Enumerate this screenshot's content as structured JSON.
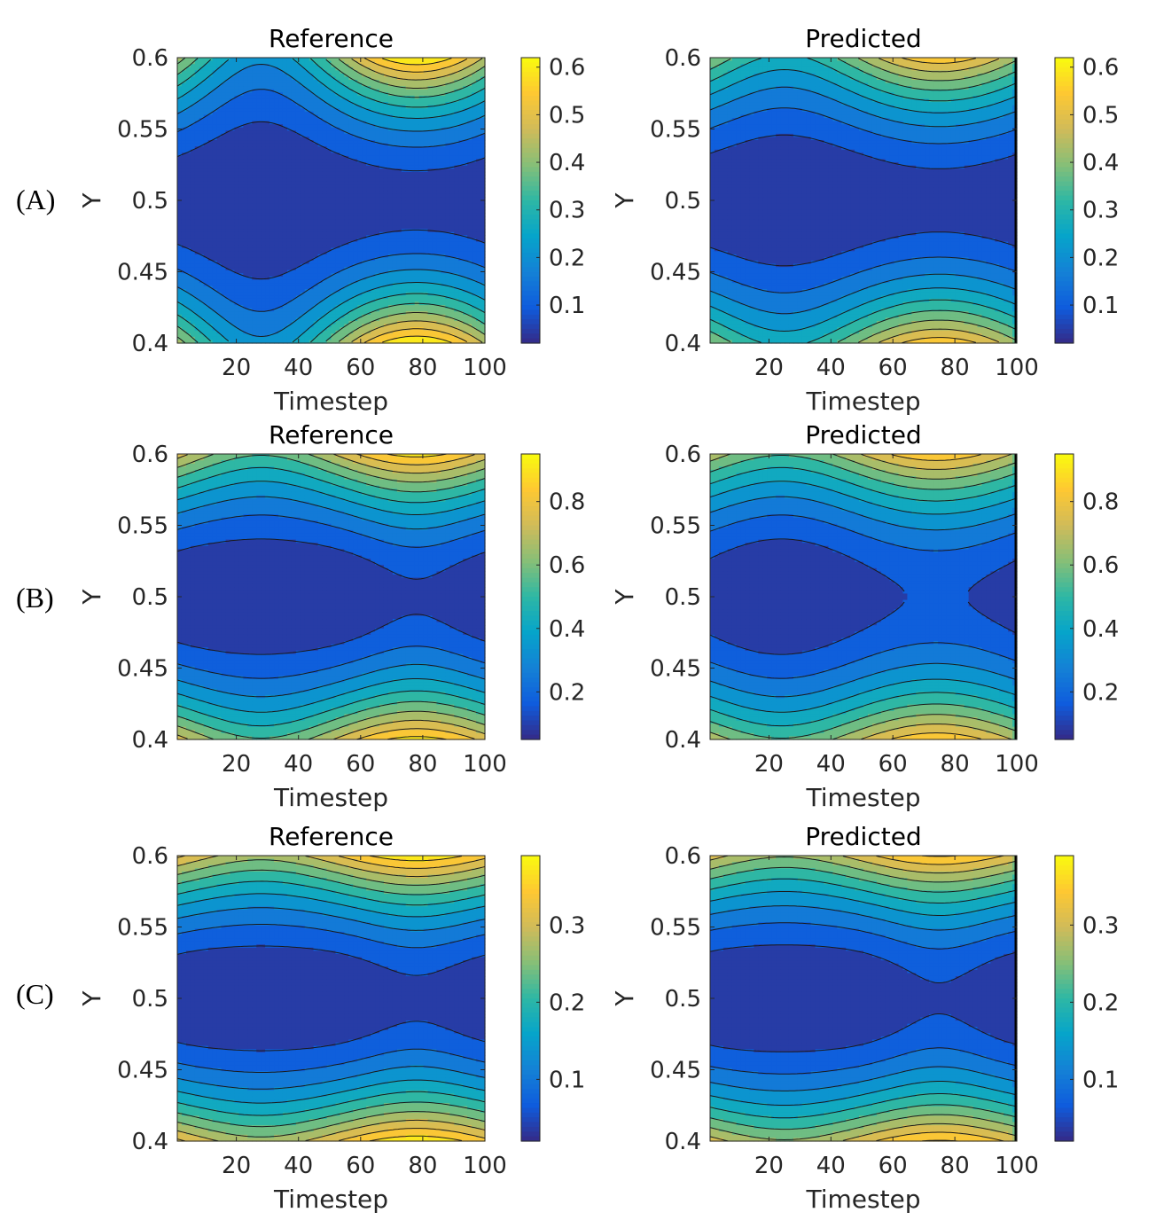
{
  "figure": {
    "rows": [
      {
        "label": "(A)"
      },
      {
        "label": "(B)"
      },
      {
        "label": "(C)"
      }
    ]
  },
  "chart_data": [
    {
      "type": "heatmap",
      "row": "A",
      "title": "Reference",
      "xlabel": "Timestep",
      "ylabel": "Y",
      "xlim": [
        1,
        100
      ],
      "ylim": [
        0.4,
        0.6
      ],
      "xticks": [
        20,
        40,
        60,
        80,
        100
      ],
      "xtick_labels": [
        "20",
        "40",
        "60",
        "80",
        "100"
      ],
      "yticks": [
        0.4,
        0.45,
        0.5,
        0.55,
        0.6
      ],
      "ytick_labels": [
        "0.4",
        "0.45",
        "0.5",
        "0.55",
        "0.6"
      ],
      "colorbar": {
        "min": 0.02,
        "max": 0.62,
        "ticks": [
          0.1,
          0.2,
          0.3,
          0.4,
          0.5,
          0.6
        ],
        "tick_labels": [
          "0.1",
          "0.2",
          "0.3",
          "0.4",
          "0.5",
          "0.6"
        ]
      },
      "field": {
        "peak_timestep": 78,
        "edge_min": 0.2,
        "edge_max": 0.62,
        "center_min": 0.02,
        "center_max": 0.05,
        "pinch": false,
        "right_edge": false
      }
    },
    {
      "type": "heatmap",
      "row": "A",
      "title": "Predicted",
      "xlabel": "Timestep",
      "ylabel": "Y",
      "xlim": [
        1,
        100
      ],
      "ylim": [
        0.4,
        0.6
      ],
      "xticks": [
        20,
        40,
        60,
        80,
        100
      ],
      "xtick_labels": [
        "20",
        "40",
        "60",
        "80",
        "100"
      ],
      "yticks": [
        0.4,
        0.45,
        0.5,
        0.55,
        0.6
      ],
      "ytick_labels": [
        "0.4",
        "0.45",
        "0.5",
        "0.55",
        "0.6"
      ],
      "colorbar": {
        "min": 0.02,
        "max": 0.62,
        "ticks": [
          0.1,
          0.2,
          0.3,
          0.4,
          0.5,
          0.6
        ],
        "tick_labels": [
          "0.1",
          "0.2",
          "0.3",
          "0.4",
          "0.5",
          "0.6"
        ]
      },
      "field": {
        "peak_timestep": 75,
        "edge_min": 0.28,
        "edge_max": 0.55,
        "center_min": 0.02,
        "center_max": 0.05,
        "pinch": false,
        "right_edge": true
      }
    },
    {
      "type": "heatmap",
      "row": "B",
      "title": "Reference",
      "xlabel": "Timestep",
      "ylabel": "Y",
      "xlim": [
        1,
        100
      ],
      "ylim": [
        0.4,
        0.6
      ],
      "xticks": [
        20,
        40,
        60,
        80,
        100
      ],
      "xtick_labels": [
        "20",
        "40",
        "60",
        "80",
        "100"
      ],
      "yticks": [
        0.4,
        0.45,
        0.5,
        0.55,
        0.6
      ],
      "ytick_labels": [
        "0.4",
        "0.45",
        "0.5",
        "0.55",
        "0.6"
      ],
      "colorbar": {
        "min": 0.05,
        "max": 0.95,
        "ticks": [
          0.2,
          0.4,
          0.6,
          0.8
        ],
        "tick_labels": [
          "0.2",
          "0.4",
          "0.6",
          "0.8"
        ]
      },
      "field": {
        "peak_timestep": 78,
        "edge_min": 0.55,
        "edge_max": 0.9,
        "center_min": 0.05,
        "center_max": 0.12,
        "pinch": true,
        "right_edge": false
      }
    },
    {
      "type": "heatmap",
      "row": "B",
      "title": "Predicted",
      "xlabel": "Timestep",
      "ylabel": "Y",
      "xlim": [
        1,
        100
      ],
      "ylim": [
        0.4,
        0.6
      ],
      "xticks": [
        20,
        40,
        60,
        80,
        100
      ],
      "xtick_labels": [
        "20",
        "40",
        "60",
        "80",
        "100"
      ],
      "yticks": [
        0.4,
        0.45,
        0.5,
        0.55,
        0.6
      ],
      "ytick_labels": [
        "0.4",
        "0.45",
        "0.5",
        "0.55",
        "0.6"
      ],
      "colorbar": {
        "min": 0.05,
        "max": 0.95,
        "ticks": [
          0.2,
          0.4,
          0.6,
          0.8
        ],
        "tick_labels": [
          "0.2",
          "0.4",
          "0.6",
          "0.8"
        ]
      },
      "field": {
        "peak_timestep": 74,
        "edge_min": 0.55,
        "edge_max": 0.85,
        "center_min": 0.05,
        "center_max": 0.14,
        "pinch": false,
        "right_edge": true
      }
    },
    {
      "type": "heatmap",
      "row": "C",
      "title": "Reference",
      "xlabel": "Timestep",
      "ylabel": "Y",
      "xlim": [
        1,
        100
      ],
      "ylim": [
        0.4,
        0.6
      ],
      "xticks": [
        20,
        40,
        60,
        80,
        100
      ],
      "xtick_labels": [
        "20",
        "40",
        "60",
        "80",
        "100"
      ],
      "yticks": [
        0.4,
        0.45,
        0.5,
        0.55,
        0.6
      ],
      "ytick_labels": [
        "0.4",
        "0.45",
        "0.5",
        "0.55",
        "0.6"
      ],
      "colorbar": {
        "min": 0.02,
        "max": 0.39,
        "ticks": [
          0.1,
          0.2,
          0.3
        ],
        "tick_labels": [
          "0.1",
          "0.2",
          "0.3"
        ]
      },
      "field": {
        "peak_timestep": 78,
        "edge_min": 0.27,
        "edge_max": 0.38,
        "center_min": 0.02,
        "center_max": 0.045,
        "pinch": true,
        "right_edge": false
      }
    },
    {
      "type": "heatmap",
      "row": "C",
      "title": "Predicted",
      "xlabel": "Timestep",
      "ylabel": "Y",
      "xlim": [
        1,
        100
      ],
      "ylim": [
        0.4,
        0.6
      ],
      "xticks": [
        20,
        40,
        60,
        80,
        100
      ],
      "xtick_labels": [
        "20",
        "40",
        "60",
        "80",
        "100"
      ],
      "yticks": [
        0.4,
        0.45,
        0.5,
        0.55,
        0.6
      ],
      "ytick_labels": [
        "0.4",
        "0.45",
        "0.5",
        "0.55",
        "0.6"
      ],
      "colorbar": {
        "min": 0.02,
        "max": 0.39,
        "ticks": [
          0.1,
          0.2,
          0.3
        ],
        "tick_labels": [
          "0.1",
          "0.2",
          "0.3"
        ]
      },
      "field": {
        "peak_timestep": 75,
        "edge_min": 0.26,
        "edge_max": 0.36,
        "center_min": 0.02,
        "center_max": 0.05,
        "pinch": true,
        "right_edge": true
      }
    }
  ],
  "colormap": {
    "name": "parula",
    "stops": [
      "#352a87",
      "#0f5cdd",
      "#1481d6",
      "#06a4ca",
      "#2eb7a4",
      "#87bf77",
      "#d1bb59",
      "#fec832",
      "#f9fb0e"
    ]
  }
}
